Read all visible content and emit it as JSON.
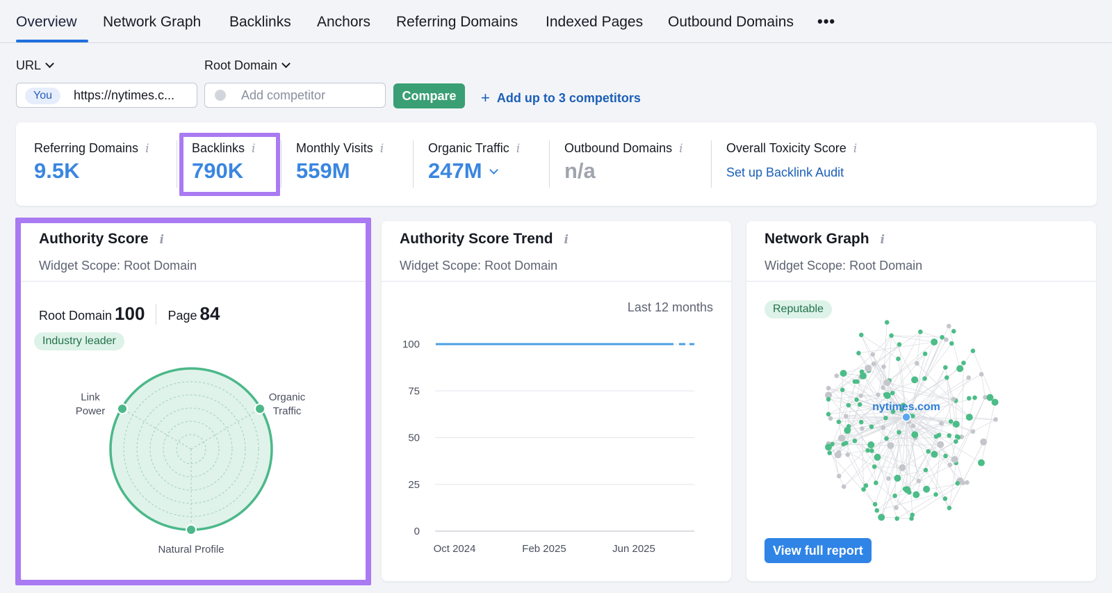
{
  "tabs": [
    {
      "label": "Overview"
    },
    {
      "label": "Network Graph"
    },
    {
      "label": "Backlinks"
    },
    {
      "label": "Anchors"
    },
    {
      "label": "Referring Domains"
    },
    {
      "label": "Indexed Pages"
    },
    {
      "label": "Outbound Domains"
    }
  ],
  "tab_more": "•••",
  "controls": {
    "url_selector": "URL",
    "root_selector": "Root Domain",
    "you_badge": "You",
    "url_value": "https://nytimes.c...",
    "competitor_placeholder": "Add competitor",
    "compare_label": "Compare",
    "add_competitors": "Add up to 3 competitors"
  },
  "metrics": {
    "referring_domains": {
      "label": "Referring Domains",
      "value": "9.5K"
    },
    "backlinks": {
      "label": "Backlinks",
      "value": "790K"
    },
    "monthly_visits": {
      "label": "Monthly Visits",
      "value": "559M"
    },
    "organic_traffic": {
      "label": "Organic Traffic",
      "value": "247M"
    },
    "outbound_domains": {
      "label": "Outbound Domains",
      "value": "n/a"
    },
    "toxicity": {
      "label": "Overall Toxicity Score",
      "link": "Set up Backlink Audit"
    }
  },
  "info_glyph": "i",
  "authority": {
    "title": "Authority Score",
    "scope": "Widget Scope: Root Domain",
    "root_label": "Root Domain",
    "root_value": "100",
    "page_label": "Page",
    "page_value": "84",
    "badge": "Industry leader",
    "radar": {
      "link_power_1": "Link",
      "link_power_2": "Power",
      "organic_1": "Organic",
      "organic_2": "Traffic",
      "natural": "Natural Profile"
    }
  },
  "trend": {
    "title": "Authority Score Trend",
    "scope": "Widget Scope: Root Domain",
    "range": "Last 12 months"
  },
  "network": {
    "title": "Network Graph",
    "scope": "Widget Scope: Root Domain",
    "badge": "Reputable",
    "center_label": "nytimes.com",
    "button": "View full report"
  },
  "colors": {
    "accent_blue": "#3a86e0",
    "green": "#3a9f74",
    "highlight": "#a97af2",
    "node_green": "#4cbd88",
    "node_gray": "#c4c6cc"
  },
  "chart_data": {
    "type": "line",
    "x_ticks": [
      "Oct 2024",
      "Feb 2025",
      "Jun 2025"
    ],
    "y_ticks": [
      "100",
      "75",
      "50",
      "25",
      "0"
    ],
    "ylim": [
      0,
      100
    ],
    "series": [
      {
        "values": [
          100,
          100,
          100,
          100,
          100,
          100,
          100,
          100,
          100,
          100,
          100,
          100
        ]
      }
    ],
    "grid": true
  }
}
